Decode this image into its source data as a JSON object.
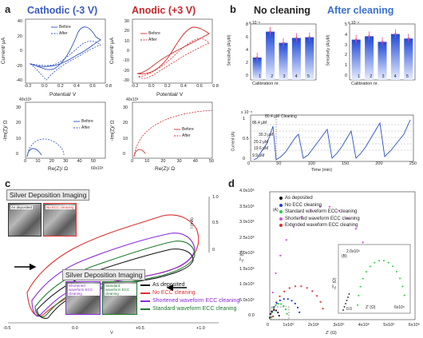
{
  "panel_a": {
    "label": "a",
    "cathodic_title": "Cathodic (-3 V)",
    "anodic_title": "Anodic (+3 V)",
    "title_color_cathodic": "#3a5bbf",
    "title_color_anodic": "#c8262a",
    "cv_ylabel": "Current/ μA",
    "cv_xlabel": "Potential/ V",
    "eis_ylabel": "-Im(Z)/ Ω",
    "eis_xlabel": "Re(Z)/ Ω",
    "eis_xunit": "60x10³",
    "eis_ymult": "40x10³",
    "legend_before": "Before",
    "legend_after": "After",
    "cv_xticks": [
      "-0.2",
      "0.0",
      "0.2",
      "0.4",
      "0.6",
      "0.8"
    ],
    "cath_yticks": [
      "40",
      "20",
      "0",
      "-20",
      "-40"
    ],
    "anod_yticks": [
      "30",
      "20",
      "10",
      "0",
      "-10",
      "-20",
      "-30"
    ],
    "eis_xticks": [
      "0",
      "10",
      "20",
      "30",
      "40",
      "50"
    ],
    "eis_yticks": [
      "30",
      "20",
      "10",
      "0"
    ]
  },
  "panel_b": {
    "label": "b",
    "no_cleaning": "No cleaning",
    "after_cleaning": "After cleaning",
    "after_cleaning_color": "#3a6fd0",
    "sens_ylabel": "Sensitivity (A/μM)",
    "sens_mult": "x 10⁻⁸",
    "calib_xlabel": "Calibration nr.",
    "calib_xticks": [
      "1",
      "2",
      "3",
      "4",
      "5"
    ],
    "left_yticks": [
      "8",
      "6",
      "4",
      "2",
      "0"
    ],
    "right_yticks": [
      "5",
      "4",
      "3",
      "2",
      "1",
      "0"
    ],
    "left_values": [
      3.2,
      6.9,
      5.3,
      6.0,
      6.1
    ],
    "right_values": [
      3.6,
      3.9,
      3.4,
      4.1,
      3.7
    ],
    "time_ylabel": "Current (A)",
    "time_mult": "x 10⁻⁸",
    "time_xlabel": "Time (min)",
    "time_xticks": [
      "0",
      "50",
      "100",
      "150",
      "200",
      "250"
    ],
    "time_yticks": [
      "1",
      "0.5",
      "0"
    ],
    "annotations": [
      "80.4 μM",
      "86.4 μM",
      "Cleaning",
      "30.3 μM",
      "20.2 μM",
      "19.6 μM",
      "9.9 μM"
    ]
  },
  "panel_c": {
    "label": "c",
    "imaging_title_top": "Silver Deposition Imaging",
    "imaging_title_bottom": "Silver Deposition Imaging",
    "sem_as_deposited": "As deposited",
    "sem_no_ecc": "No ECC cleaning",
    "sem_shortened": "Shortened waveform ECC cleaning",
    "sem_standard": "Standard waveform ECC cleaning",
    "legend": [
      {
        "label": "As deposited",
        "color": "#111111"
      },
      {
        "label": "No ECC cleaning",
        "color": "#e03030"
      },
      {
        "label": "Shortened waveform ECC cleaning",
        "color": "#8a2be2"
      },
      {
        "label": "Standard waveform ECC cleaning",
        "color": "#1e7a2e"
      }
    ],
    "xticks": [
      "-0.5",
      "0.0",
      "+0.5",
      "+1.0"
    ],
    "xlabel": "V",
    "yticks": [
      "1.0",
      "0.5",
      "0"
    ],
    "ylabel": "I (mA)"
  },
  "panel_d": {
    "label": "d",
    "inset_a": "(A)",
    "inset_b": "(B)",
    "ylabel": "-Z'' (Ω)",
    "xlabel": "Z' (Ω)",
    "yticks": [
      "4.0x10⁶",
      "3.5x10⁶",
      "3.0x10⁶",
      "2.5x10⁶",
      "2.0x10⁶",
      "1.5x10⁶",
      "1.0x10⁶",
      "5.0x10⁵",
      "0.0"
    ],
    "xticks": [
      "0",
      "1x10⁶",
      "2x10⁶",
      "3x10⁶",
      "4x10⁶",
      "5x10⁶",
      "6x10⁶"
    ],
    "legend": [
      {
        "label": "As deposited",
        "color": "#111111"
      },
      {
        "label": "No ECC cleaning",
        "color": "#1f3fd6"
      },
      {
        "label": "Standard waveform ECC cleaning",
        "color": "#2ecc40"
      },
      {
        "label": "Shortened waveform ECC cleaning",
        "color": "#d050e0"
      },
      {
        "label": "Extended waveform ECC cleaning",
        "color": "#e03030"
      }
    ],
    "inset_yticks": [
      "2.0x10⁵",
      "0.0"
    ],
    "inset_ylabel": "-Z'' (Ω)",
    "inset_xlabel": "Z' (Ω)",
    "inset_xunit": "6x10⁵"
  }
}
